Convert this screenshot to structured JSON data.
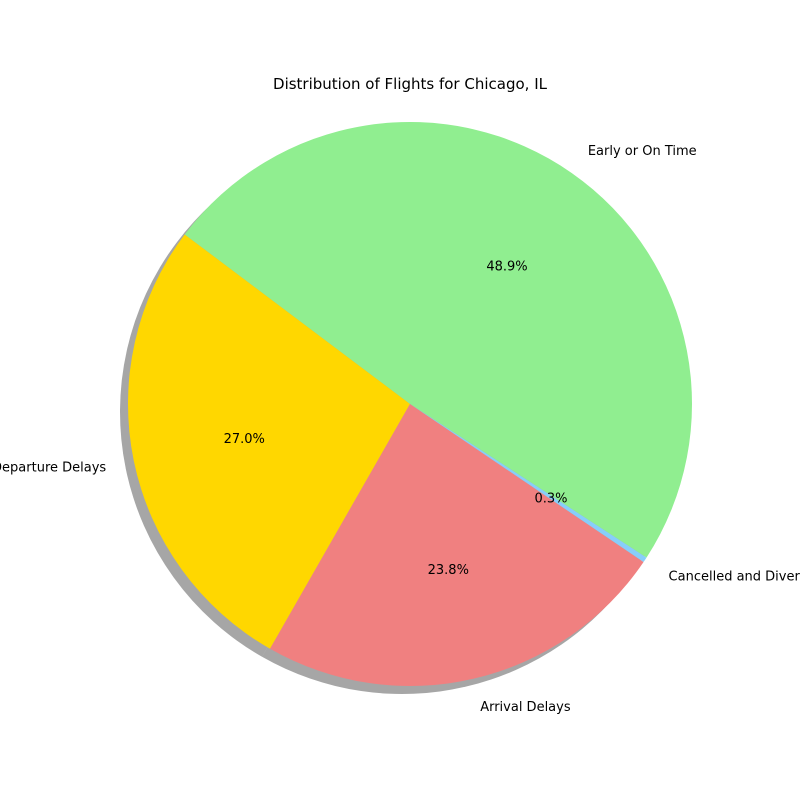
{
  "chart_data": {
    "type": "pie",
    "title": "Distribution of Flights for Chicago, IL",
    "slices": [
      {
        "label": "Early or On Time",
        "value": 48.9,
        "pct_label": "48.9%",
        "color": "#90ee90"
      },
      {
        "label": "Departure Delays",
        "value": 27.0,
        "pct_label": "27.0%",
        "color": "#ffd700"
      },
      {
        "label": "Arrival Delays",
        "value": 23.8,
        "pct_label": "23.8%",
        "color": "#f08080"
      },
      {
        "label": "Cancelled and Diverted",
        "value": 0.3,
        "pct_label": "0.3%",
        "color": "#87cefa"
      }
    ],
    "start_angle_deg": -33,
    "counterclockwise": true,
    "shadow": true
  }
}
